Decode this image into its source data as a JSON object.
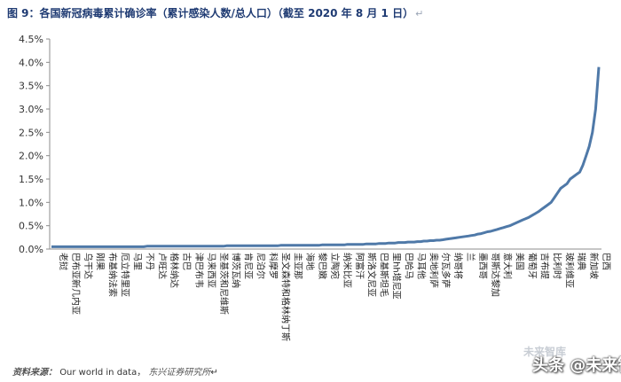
{
  "header": {
    "title": "图 9：各国新冠病毒累计确诊率（累计感染人数/总人口）（截至 2020 年 8 月 1 日）",
    "paragraph_mark": "↵"
  },
  "footer": {
    "source_label": "资料来源：",
    "source_text": "Our world in data，",
    "source_org": "东兴证券研究所",
    "paragraph_mark": "↵"
  },
  "watermark": {
    "faint": "未来智库",
    "main": "头条 @未来智库"
  },
  "colors": {
    "line": "#4f79a8",
    "axis": "#8c8c8c",
    "title": "#1f3b73"
  },
  "chart_data": {
    "type": "line",
    "title": "",
    "xlabel": "",
    "ylabel": "",
    "ylim": [
      0,
      4.5
    ],
    "yticks": [
      "0.0%",
      "0.5%",
      "1.0%",
      "1.5%",
      "2.0%",
      "2.5%",
      "3.0%",
      "3.5%",
      "4.0%",
      "4.5%"
    ],
    "grid": false,
    "legend": "none",
    "x_labels": [
      "老挝",
      "巴布亚新几内亚",
      "乌干达",
      "刚果",
      "布基纳法索",
      "厄立特里亚",
      "马里",
      "不丹",
      "卢旺达",
      "格林纳达",
      "古巴",
      "津巴布韦",
      "马来西亚",
      "圣基茨和尼维斯",
      "博茨瓦纳",
      "肯尼亚",
      "尼泊尔",
      "科摩罗",
      "圣文森特和格林纳丁斯",
      "圭亚那",
      "海地",
      "黎巴嫩",
      "立陶宛",
      "纳米比亚",
      "阿富汗",
      "斯洛文尼亚",
      "巴基斯坦毛",
      "里hh塔尼亚",
      "巴哈马",
      "马耳他",
      "奥地利萨",
      "尔瓦多萨",
      "纳哥将",
      "兰",
      "墨西哥",
      "哥斯达黎加",
      "意大利",
      "美国",
      "葡萄牙",
      "吉布提",
      "比利时",
      "玻利维亚",
      "瑞典",
      "新加坡",
      "巴西"
    ],
    "series": [
      {
        "values": [
          0.05,
          0.05,
          0.05,
          0.05,
          0.05,
          0.05,
          0.05,
          0.05,
          0.05,
          0.05,
          0.05,
          0.05,
          0.05,
          0.05,
          0.05,
          0.05,
          0.05,
          0.05,
          0.05,
          0.05,
          0.05,
          0.05,
          0.05,
          0.05,
          0.05,
          0.05,
          0.05,
          0.05,
          0.05,
          0.05,
          0.06,
          0.06,
          0.06,
          0.06,
          0.06,
          0.06,
          0.06,
          0.06,
          0.06,
          0.06,
          0.06,
          0.06,
          0.06,
          0.06,
          0.06,
          0.06,
          0.06,
          0.06,
          0.06,
          0.06,
          0.06,
          0.06,
          0.06,
          0.06,
          0.06,
          0.07,
          0.07,
          0.07,
          0.07,
          0.07,
          0.07,
          0.07,
          0.07,
          0.07,
          0.07,
          0.07,
          0.07,
          0.07,
          0.07,
          0.07,
          0.07,
          0.07,
          0.08,
          0.08,
          0.08,
          0.08,
          0.08,
          0.08,
          0.08,
          0.08,
          0.08,
          0.08,
          0.08,
          0.08,
          0.08,
          0.09,
          0.09,
          0.09,
          0.09,
          0.09,
          0.09,
          0.09,
          0.09,
          0.1,
          0.1,
          0.1,
          0.1,
          0.1,
          0.1,
          0.11,
          0.11,
          0.11,
          0.11,
          0.12,
          0.12,
          0.12,
          0.13,
          0.13,
          0.13,
          0.14,
          0.14,
          0.14,
          0.15,
          0.15,
          0.15,
          0.16,
          0.16,
          0.17,
          0.17,
          0.18,
          0.18,
          0.19,
          0.19,
          0.2,
          0.21,
          0.22,
          0.23,
          0.24,
          0.25,
          0.26,
          0.27,
          0.28,
          0.29,
          0.3,
          0.32,
          0.33,
          0.35,
          0.37,
          0.38,
          0.4,
          0.42,
          0.44,
          0.46,
          0.48,
          0.5,
          0.53,
          0.56,
          0.59,
          0.62,
          0.65,
          0.68,
          0.72,
          0.76,
          0.8,
          0.85,
          0.9,
          0.95,
          1.0,
          1.1,
          1.2,
          1.3,
          1.35,
          1.4,
          1.5,
          1.55,
          1.6,
          1.65,
          1.8,
          2.0,
          2.2,
          2.5,
          3.0,
          3.9
        ]
      }
    ]
  }
}
